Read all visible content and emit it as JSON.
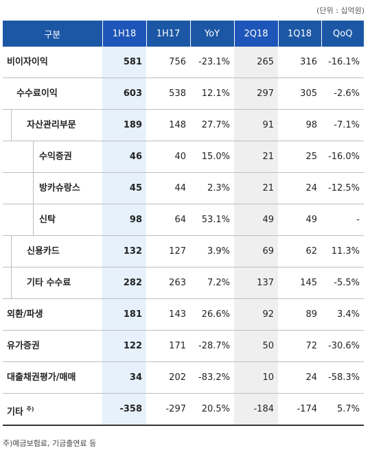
{
  "unit_note": "(단위 : 십억원)",
  "headers": [
    "구분",
    "1H18",
    "1H17",
    "YoY",
    "2Q18",
    "1Q18",
    "QoQ"
  ],
  "rows": [
    {
      "label": "비이자이익",
      "level": 0,
      "values": [
        "581",
        "756",
        "-23.1%",
        "265",
        "316",
        "-16.1%"
      ]
    },
    {
      "label": "수수료이익",
      "level": 1,
      "values": [
        "603",
        "538",
        "12.1%",
        "297",
        "305",
        "-2.6%"
      ]
    },
    {
      "label": "자산관리부문",
      "level": 2,
      "values": [
        "189",
        "148",
        "27.7%",
        "91",
        "98",
        "-7.1%"
      ]
    },
    {
      "label": "수익증권",
      "level": 3,
      "values": [
        "46",
        "40",
        "15.0%",
        "21",
        "25",
        "-16.0%"
      ]
    },
    {
      "label": "방카슈랑스",
      "level": 3,
      "values": [
        "45",
        "44",
        "2.3%",
        "21",
        "24",
        "-12.5%"
      ]
    },
    {
      "label": "신탁",
      "level": 3,
      "values": [
        "98",
        "64",
        "53.1%",
        "49",
        "49",
        "-"
      ]
    },
    {
      "label": "신용카드",
      "level": 2,
      "values": [
        "132",
        "127",
        "3.9%",
        "69",
        "62",
        "11.3%"
      ]
    },
    {
      "label": "기타 수수료",
      "level": 2,
      "values": [
        "282",
        "263",
        "7.2%",
        "137",
        "145",
        "-5.5%"
      ]
    },
    {
      "label": "외환/파생",
      "level": 0,
      "values": [
        "181",
        "143",
        "26.6%",
        "92",
        "89",
        "3.4%"
      ]
    },
    {
      "label": "유가증권",
      "level": 0,
      "values": [
        "122",
        "171",
        "-28.7%",
        "50",
        "72",
        "-30.6%"
      ]
    },
    {
      "label": "대출채권평가/매매",
      "level": 0,
      "values": [
        "34",
        "202",
        "-83.2%",
        "10",
        "24",
        "-58.3%"
      ]
    },
    {
      "label": "기타",
      "label_sup": "주)",
      "level": 0,
      "values": [
        "-358",
        "-297",
        "20.5%",
        "-184",
        "-174",
        "5.7%"
      ]
    }
  ],
  "footnote": "주)예금보험료, 기금출연료 등"
}
